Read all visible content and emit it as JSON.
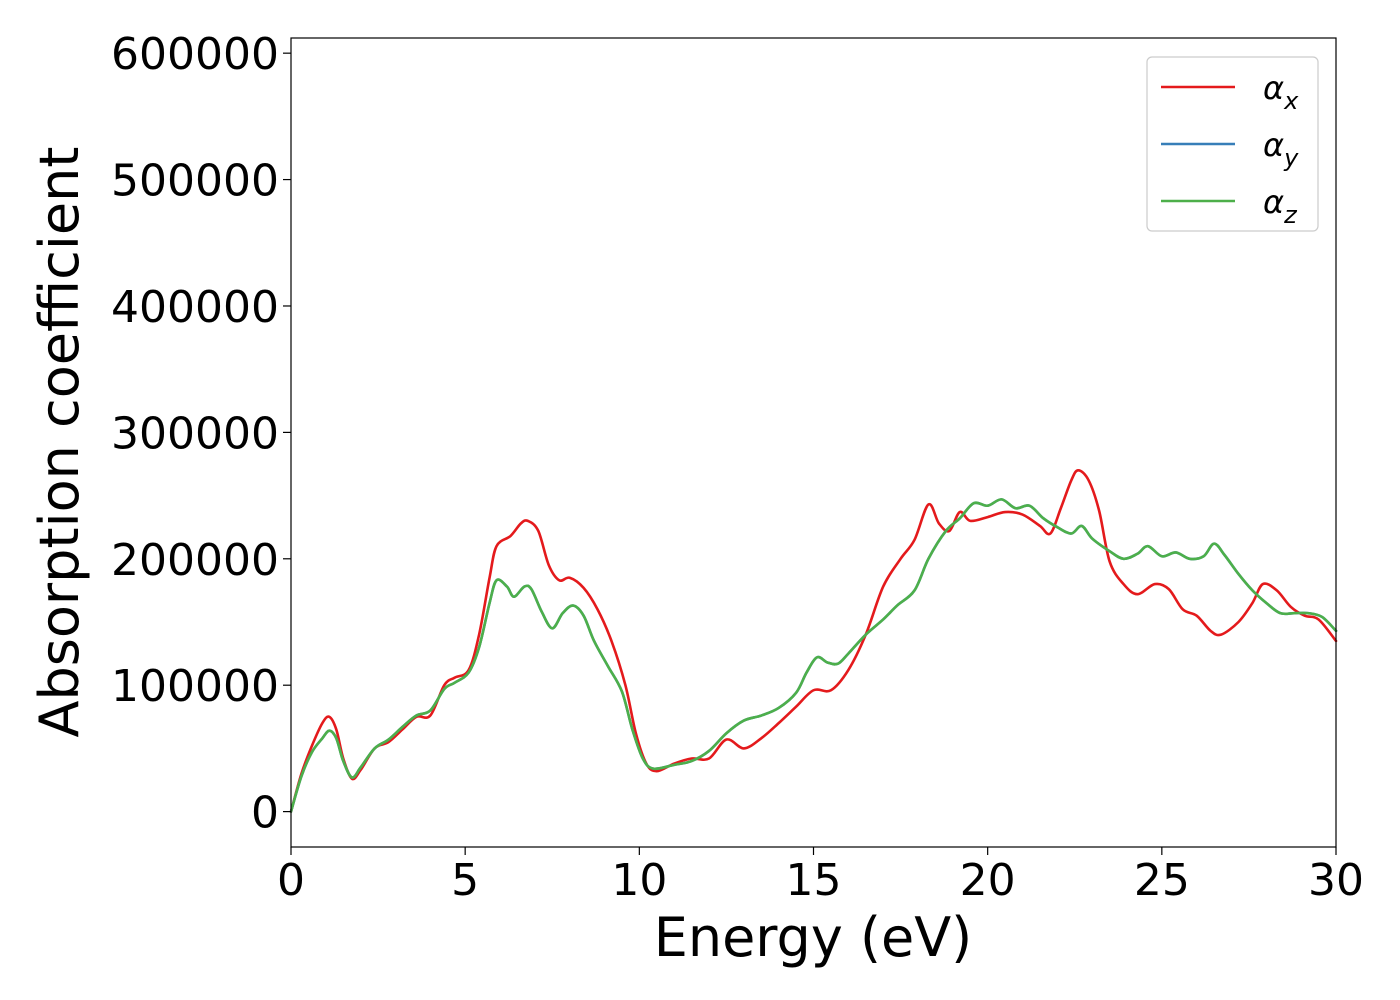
{
  "chart_data": {
    "type": "line",
    "xlabel": "Energy (eV)",
    "ylabel": "Absorption coefficient",
    "xlim": [
      0,
      30
    ],
    "ylim": [
      -28000,
      612000
    ],
    "x_ticks": [
      "0",
      "5",
      "10",
      "15",
      "20",
      "25",
      "30"
    ],
    "y_ticks": [
      "0",
      "100000",
      "200000",
      "300000",
      "400000",
      "500000",
      "600000"
    ],
    "grid": false,
    "legend_position": "top-right",
    "series": [
      {
        "name": "αx",
        "label_base": "α",
        "label_sub": "x",
        "color": "#e41a1c",
        "points": [
          [
            0,
            0
          ],
          [
            0.3,
            30000
          ],
          [
            0.6,
            52000
          ],
          [
            0.9,
            70000
          ],
          [
            1.1,
            75000
          ],
          [
            1.3,
            65000
          ],
          [
            1.5,
            42000
          ],
          [
            1.75,
            26000
          ],
          [
            2.0,
            33000
          ],
          [
            2.4,
            50000
          ],
          [
            2.8,
            55000
          ],
          [
            3.2,
            65000
          ],
          [
            3.6,
            75000
          ],
          [
            4.0,
            76000
          ],
          [
            4.4,
            100000
          ],
          [
            4.7,
            106000
          ],
          [
            5.1,
            112000
          ],
          [
            5.4,
            140000
          ],
          [
            5.7,
            185000
          ],
          [
            5.9,
            210000
          ],
          [
            6.3,
            218000
          ],
          [
            6.6,
            228000
          ],
          [
            6.8,
            230000
          ],
          [
            7.1,
            222000
          ],
          [
            7.4,
            195000
          ],
          [
            7.7,
            183000
          ],
          [
            8.0,
            185000
          ],
          [
            8.4,
            177000
          ],
          [
            8.8,
            160000
          ],
          [
            9.2,
            135000
          ],
          [
            9.6,
            100000
          ],
          [
            9.9,
            62000
          ],
          [
            10.2,
            38000
          ],
          [
            10.5,
            32000
          ],
          [
            11.0,
            38000
          ],
          [
            11.5,
            42000
          ],
          [
            12.0,
            42000
          ],
          [
            12.5,
            57000
          ],
          [
            13.0,
            50000
          ],
          [
            13.5,
            58000
          ],
          [
            14.0,
            70000
          ],
          [
            14.5,
            83000
          ],
          [
            15.0,
            96000
          ],
          [
            15.5,
            96000
          ],
          [
            16.0,
            112000
          ],
          [
            16.5,
            140000
          ],
          [
            17.0,
            178000
          ],
          [
            17.5,
            200000
          ],
          [
            17.9,
            215000
          ],
          [
            18.3,
            243000
          ],
          [
            18.6,
            228000
          ],
          [
            18.9,
            222000
          ],
          [
            19.2,
            237000
          ],
          [
            19.5,
            230000
          ],
          [
            20.0,
            233000
          ],
          [
            20.5,
            237000
          ],
          [
            21.0,
            235000
          ],
          [
            21.5,
            226000
          ],
          [
            21.8,
            220000
          ],
          [
            22.1,
            240000
          ],
          [
            22.4,
            262000
          ],
          [
            22.6,
            270000
          ],
          [
            22.9,
            262000
          ],
          [
            23.2,
            238000
          ],
          [
            23.5,
            198000
          ],
          [
            23.9,
            180000
          ],
          [
            24.3,
            172000
          ],
          [
            24.8,
            180000
          ],
          [
            25.2,
            176000
          ],
          [
            25.6,
            160000
          ],
          [
            26.0,
            155000
          ],
          [
            26.4,
            143000
          ],
          [
            26.7,
            140000
          ],
          [
            27.2,
            150000
          ],
          [
            27.6,
            165000
          ],
          [
            27.9,
            180000
          ],
          [
            28.3,
            175000
          ],
          [
            28.7,
            162000
          ],
          [
            29.1,
            155000
          ],
          [
            29.5,
            152000
          ],
          [
            30.0,
            135000
          ]
        ]
      },
      {
        "name": "αy",
        "label_base": "α",
        "label_sub": "y",
        "color": "#377eb8",
        "points": [
          [
            0,
            0
          ],
          [
            0.3,
            28000
          ],
          [
            0.6,
            47000
          ],
          [
            0.9,
            58000
          ],
          [
            1.1,
            64000
          ],
          [
            1.3,
            58000
          ],
          [
            1.5,
            40000
          ],
          [
            1.75,
            27000
          ],
          [
            2.0,
            35000
          ],
          [
            2.4,
            50000
          ],
          [
            2.8,
            57000
          ],
          [
            3.2,
            67000
          ],
          [
            3.6,
            76000
          ],
          [
            4.0,
            80000
          ],
          [
            4.4,
            97000
          ],
          [
            4.7,
            102000
          ],
          [
            5.1,
            110000
          ],
          [
            5.4,
            130000
          ],
          [
            5.7,
            165000
          ],
          [
            5.9,
            183000
          ],
          [
            6.2,
            178000
          ],
          [
            6.4,
            170000
          ],
          [
            6.7,
            178000
          ],
          [
            6.9,
            176000
          ],
          [
            7.2,
            158000
          ],
          [
            7.5,
            145000
          ],
          [
            7.8,
            157000
          ],
          [
            8.1,
            163000
          ],
          [
            8.4,
            155000
          ],
          [
            8.7,
            135000
          ],
          [
            9.1,
            115000
          ],
          [
            9.5,
            95000
          ],
          [
            9.8,
            65000
          ],
          [
            10.1,
            42000
          ],
          [
            10.4,
            34000
          ],
          [
            11.0,
            37000
          ],
          [
            11.5,
            40000
          ],
          [
            12.0,
            48000
          ],
          [
            12.5,
            62000
          ],
          [
            13.0,
            72000
          ],
          [
            13.5,
            76000
          ],
          [
            14.0,
            82000
          ],
          [
            14.5,
            94000
          ],
          [
            14.8,
            110000
          ],
          [
            15.1,
            122000
          ],
          [
            15.4,
            118000
          ],
          [
            15.7,
            117000
          ],
          [
            16.0,
            125000
          ],
          [
            16.5,
            140000
          ],
          [
            17.0,
            152000
          ],
          [
            17.4,
            163000
          ],
          [
            17.9,
            175000
          ],
          [
            18.3,
            200000
          ],
          [
            18.8,
            222000
          ],
          [
            19.2,
            232000
          ],
          [
            19.6,
            244000
          ],
          [
            20.0,
            242000
          ],
          [
            20.4,
            247000
          ],
          [
            20.8,
            240000
          ],
          [
            21.2,
            242000
          ],
          [
            21.6,
            232000
          ],
          [
            22.0,
            225000
          ],
          [
            22.4,
            220000
          ],
          [
            22.7,
            226000
          ],
          [
            23.0,
            216000
          ],
          [
            23.5,
            206000
          ],
          [
            23.9,
            200000
          ],
          [
            24.3,
            204000
          ],
          [
            24.6,
            210000
          ],
          [
            25.0,
            202000
          ],
          [
            25.4,
            205000
          ],
          [
            25.8,
            200000
          ],
          [
            26.2,
            202000
          ],
          [
            26.5,
            212000
          ],
          [
            26.8,
            203000
          ],
          [
            27.2,
            188000
          ],
          [
            27.6,
            175000
          ],
          [
            28.0,
            165000
          ],
          [
            28.4,
            157000
          ],
          [
            28.8,
            157000
          ],
          [
            29.2,
            157000
          ],
          [
            29.6,
            154000
          ],
          [
            30.0,
            143000
          ]
        ]
      },
      {
        "name": "αz",
        "label_base": "α",
        "label_sub": "z",
        "color": "#4daf4a",
        "points": [
          [
            0,
            0
          ],
          [
            0.3,
            28000
          ],
          [
            0.6,
            47000
          ],
          [
            0.9,
            58000
          ],
          [
            1.1,
            64000
          ],
          [
            1.3,
            58000
          ],
          [
            1.5,
            40000
          ],
          [
            1.75,
            27000
          ],
          [
            2.0,
            35000
          ],
          [
            2.4,
            50000
          ],
          [
            2.8,
            57000
          ],
          [
            3.2,
            67000
          ],
          [
            3.6,
            76000
          ],
          [
            4.0,
            80000
          ],
          [
            4.4,
            97000
          ],
          [
            4.7,
            102000
          ],
          [
            5.1,
            110000
          ],
          [
            5.4,
            130000
          ],
          [
            5.7,
            165000
          ],
          [
            5.9,
            183000
          ],
          [
            6.2,
            178000
          ],
          [
            6.4,
            170000
          ],
          [
            6.7,
            178000
          ],
          [
            6.9,
            176000
          ],
          [
            7.2,
            158000
          ],
          [
            7.5,
            145000
          ],
          [
            7.8,
            157000
          ],
          [
            8.1,
            163000
          ],
          [
            8.4,
            155000
          ],
          [
            8.7,
            135000
          ],
          [
            9.1,
            115000
          ],
          [
            9.5,
            95000
          ],
          [
            9.8,
            65000
          ],
          [
            10.1,
            42000
          ],
          [
            10.4,
            34000
          ],
          [
            11.0,
            37000
          ],
          [
            11.5,
            40000
          ],
          [
            12.0,
            48000
          ],
          [
            12.5,
            62000
          ],
          [
            13.0,
            72000
          ],
          [
            13.5,
            76000
          ],
          [
            14.0,
            82000
          ],
          [
            14.5,
            94000
          ],
          [
            14.8,
            110000
          ],
          [
            15.1,
            122000
          ],
          [
            15.4,
            118000
          ],
          [
            15.7,
            117000
          ],
          [
            16.0,
            125000
          ],
          [
            16.5,
            140000
          ],
          [
            17.0,
            152000
          ],
          [
            17.4,
            163000
          ],
          [
            17.9,
            175000
          ],
          [
            18.3,
            200000
          ],
          [
            18.8,
            222000
          ],
          [
            19.2,
            232000
          ],
          [
            19.6,
            244000
          ],
          [
            20.0,
            242000
          ],
          [
            20.4,
            247000
          ],
          [
            20.8,
            240000
          ],
          [
            21.2,
            242000
          ],
          [
            21.6,
            232000
          ],
          [
            22.0,
            225000
          ],
          [
            22.4,
            220000
          ],
          [
            22.7,
            226000
          ],
          [
            23.0,
            216000
          ],
          [
            23.5,
            206000
          ],
          [
            23.9,
            200000
          ],
          [
            24.3,
            204000
          ],
          [
            24.6,
            210000
          ],
          [
            25.0,
            202000
          ],
          [
            25.4,
            205000
          ],
          [
            25.8,
            200000
          ],
          [
            26.2,
            202000
          ],
          [
            26.5,
            212000
          ],
          [
            26.8,
            203000
          ],
          [
            27.2,
            188000
          ],
          [
            27.6,
            175000
          ],
          [
            28.0,
            165000
          ],
          [
            28.4,
            157000
          ],
          [
            28.8,
            157000
          ],
          [
            29.2,
            157000
          ],
          [
            29.6,
            154000
          ],
          [
            30.0,
            143000
          ]
        ]
      }
    ]
  }
}
